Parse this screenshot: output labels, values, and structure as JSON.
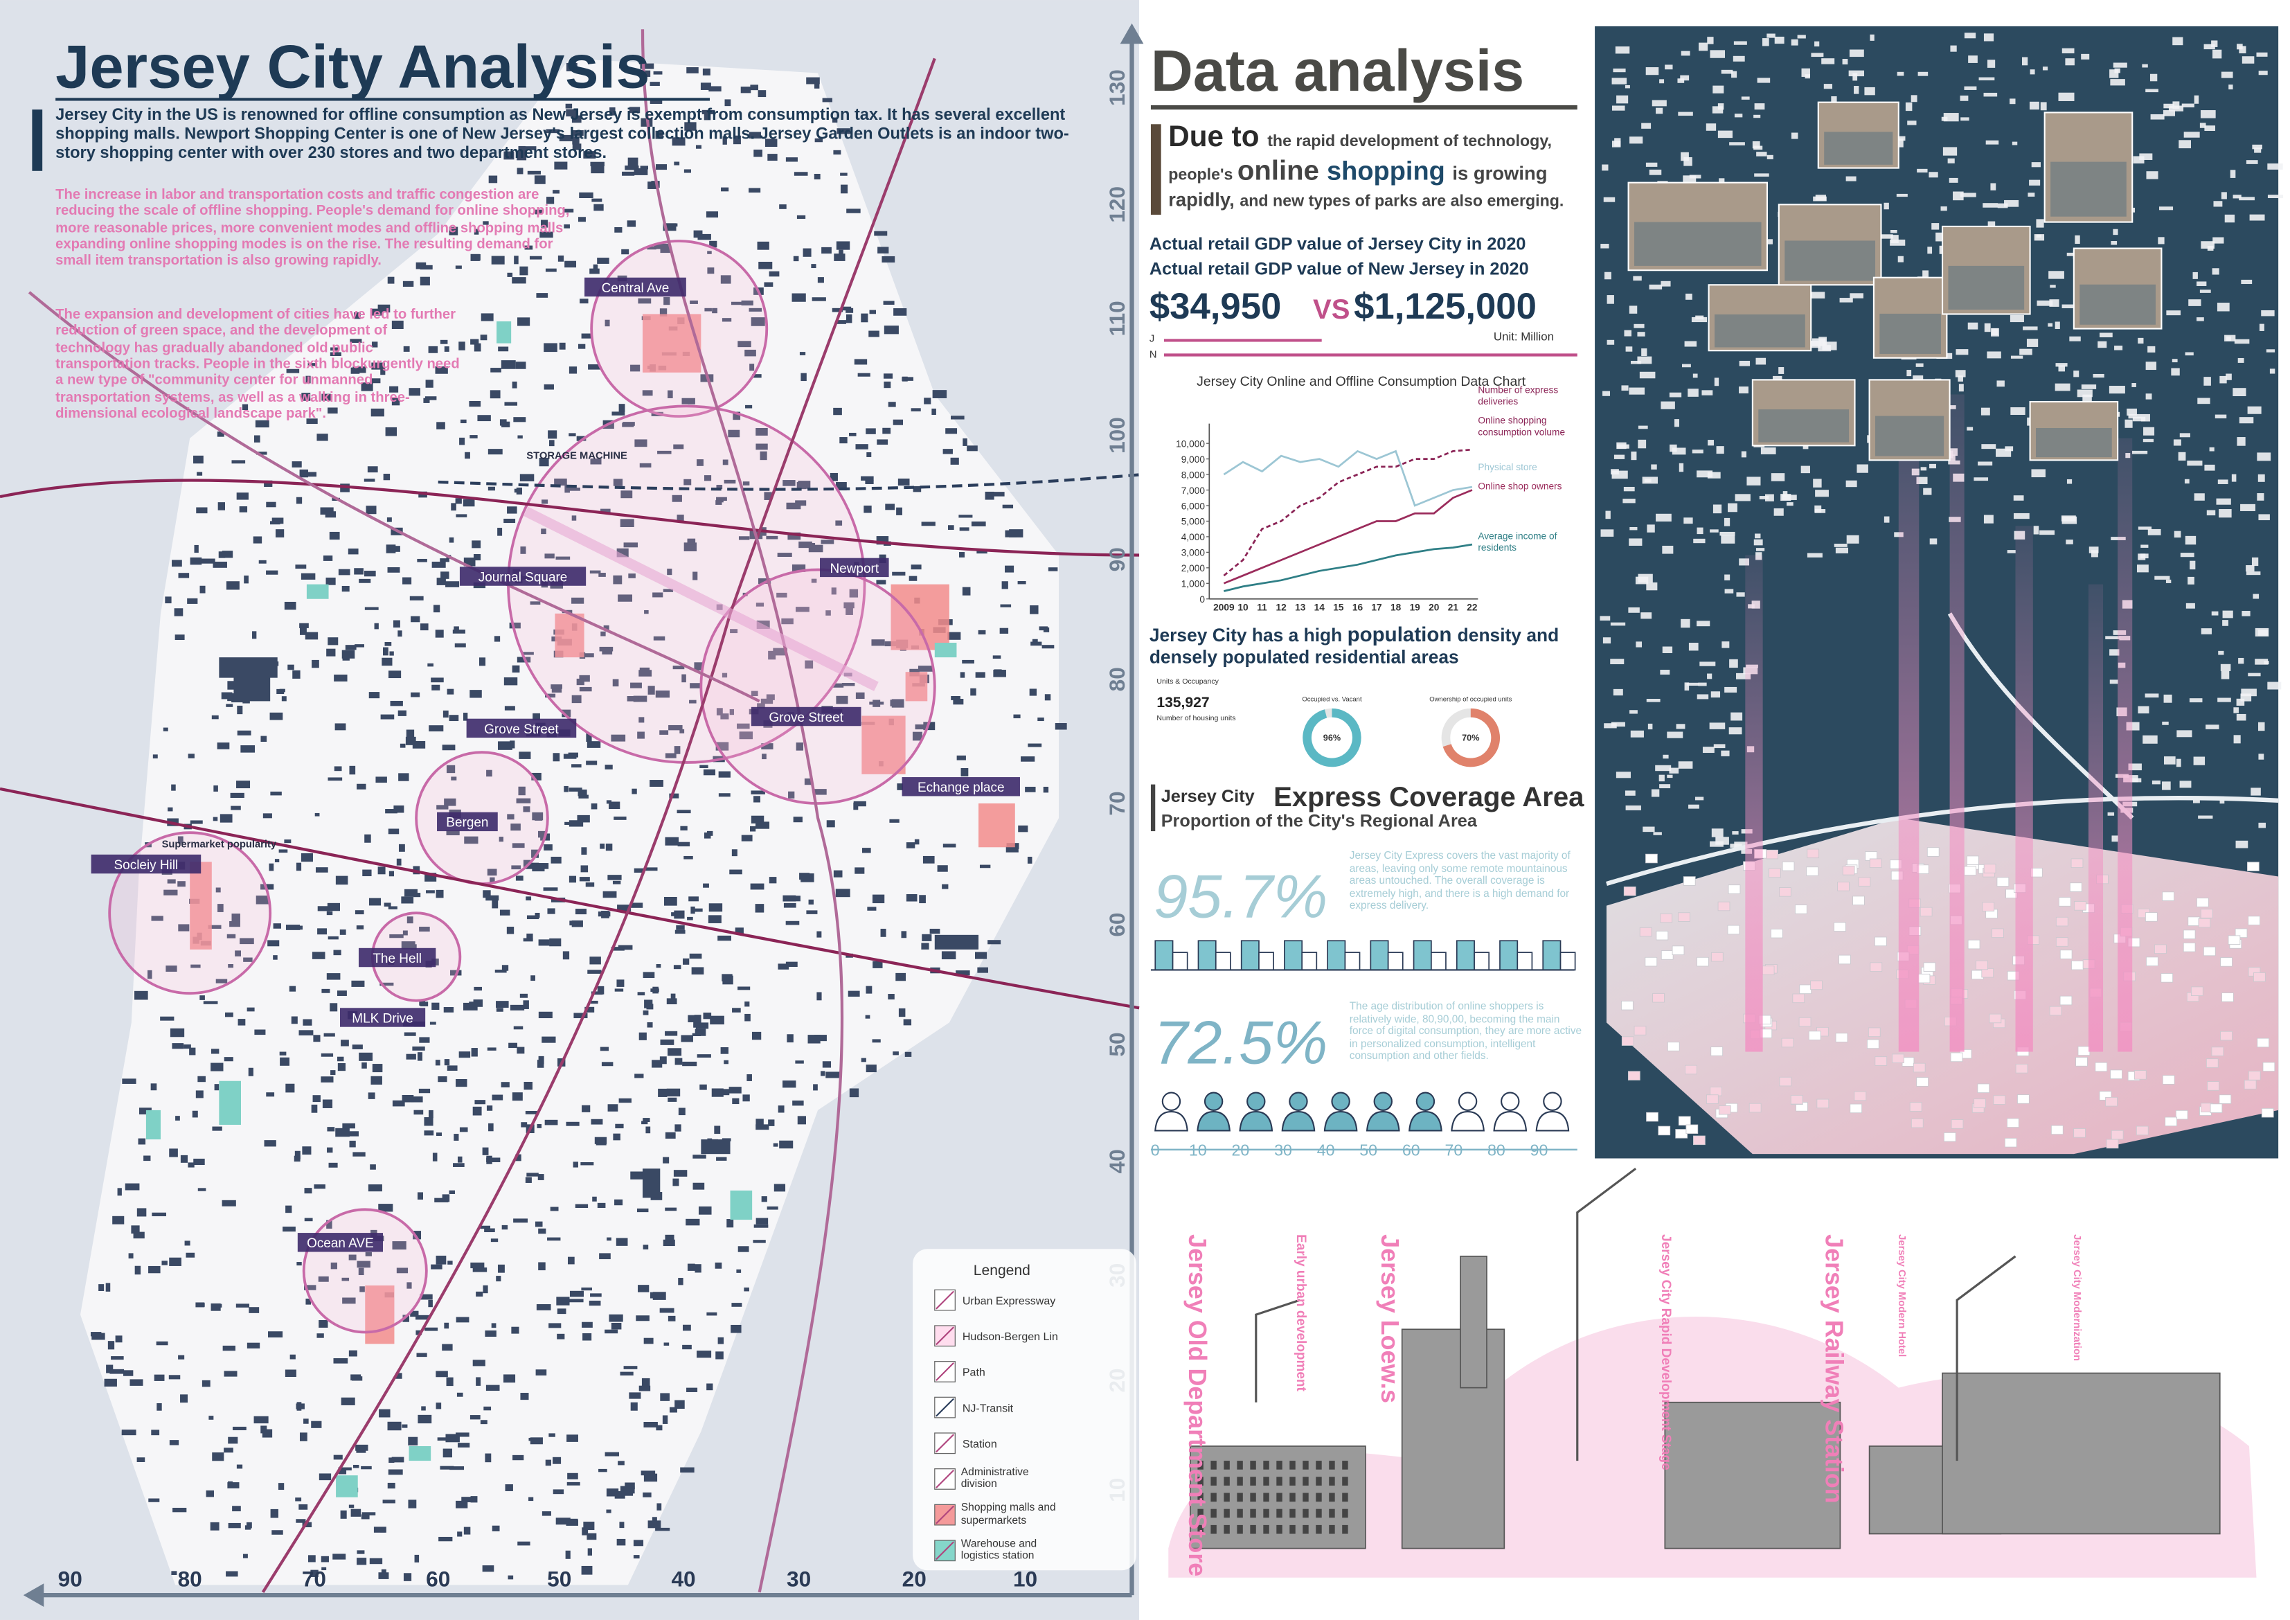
{
  "left": {
    "title": "Jersey City Analysis",
    "intro": "Jersey City in the US is renowned for offline consumption as New Jersey is exempt from consumption tax. It has several excellent shopping malls. Newport Shopping Center is one of New Jersey's largest collection malls. Jersey Garden Outlets is an indoor two-story shopping center with over 230 stores and two department stores.",
    "paragraphs": [
      "The increase in labor and transportation costs and traffic congestion are reducing the scale of offline shopping. People's demand for online shopping, more reasonable prices, more convenient modes and offline shopping malls expanding online shopping modes is on the rise. The resulting demand for small item transportation is also growing rapidly.",
      "The expansion and development of cities have led to further reduction of green space, and the development of technology has gradually abandoned old public transportation tracks. People in the sixth blockurgently need a new type of \"community center for unmanned transportation systems, as well as a walking in three-dimensional ecological landscape park\"."
    ],
    "places": [
      "Central Ave",
      "STORAGE MACHINE",
      "Journal Square",
      "Newport",
      "Grove Street",
      "Grove Street",
      "Echange place",
      "Bergen",
      "Socleiy Hill",
      "The Hell",
      "MLK Drive",
      "Ocean AVE",
      "Supermarket popularity"
    ],
    "x_ticks": [
      90,
      80,
      70,
      60,
      50,
      40,
      30,
      20,
      10
    ],
    "y_ticks": [
      130,
      120,
      110,
      100,
      90,
      80,
      70,
      60,
      50,
      40,
      30,
      20,
      10
    ],
    "legend": {
      "title": "Lengend",
      "items": [
        "Urban Expressway",
        "Hudson-Bergen Lin",
        "Path",
        "NJ-Transit",
        "Station",
        "Administrative division",
        "Shopping malls and supermarkets",
        "Warehouse and logistics station"
      ]
    }
  },
  "right": {
    "title": "Data analysis",
    "due": [
      "Due to",
      "the rapid development",
      "of technology, people's",
      "online",
      "shopping",
      "is growing rapidly,",
      "and new types of parks are also emerging."
    ],
    "gdp": {
      "line1": "Actual retail GDP value of Jersey City in 2020",
      "line2": "Actual retail GDP value of New Jersey in 2020",
      "jersey_city": "$34,950",
      "vs": "VS",
      "new_jersey": "$1,125,000",
      "j": "J",
      "n": "N",
      "unit": "Unit: Million"
    },
    "chart": {
      "type": "line",
      "title": "Jersey City Online and Offline Consumption Data Chart",
      "categories": [
        "2009",
        "10",
        "11",
        "12",
        "13",
        "14",
        "15",
        "16",
        "17",
        "18",
        "19",
        "20",
        "21",
        "22"
      ],
      "ylim": [
        0,
        10800
      ],
      "yticks": [
        0,
        {
          "value": 1000,
          "label": "1,000"
        },
        {
          "value": 2000,
          "label": "2,000"
        },
        {
          "value": 3000,
          "label": "3,000"
        },
        {
          "value": 4000,
          "label": "4,000"
        },
        {
          "value": 5000,
          "label": "5,000"
        },
        {
          "value": 6000,
          "label": "6,000"
        },
        {
          "value": 7000,
          "label": "7,000"
        },
        {
          "value": 8000,
          "label": "8,000"
        },
        {
          "value": 9000,
          "label": "9,000"
        },
        {
          "value": 10000,
          "label": "10,000"
        }
      ],
      "series": [
        {
          "name": "Number of express deliveries",
          "color": "#8b2456",
          "dashed": true,
          "values": [
            1500,
            2500,
            4500,
            5000,
            6000,
            6500,
            7500,
            8000,
            8500,
            8500,
            9000,
            9000,
            9500,
            9600
          ]
        },
        {
          "name": "Physical store",
          "color": "#9cc6d4",
          "dashed": false,
          "values": [
            8000,
            8800,
            8200,
            9200,
            8800,
            9000,
            8500,
            9500,
            9000,
            9500,
            6000,
            6500,
            7000,
            7200
          ]
        },
        {
          "name": "Online shop owners",
          "color": "#9b2c5c",
          "dashed": false,
          "values": [
            1000,
            1500,
            2000,
            2500,
            3000,
            3500,
            4000,
            4500,
            5000,
            5000,
            5500,
            5500,
            6500,
            7000
          ]
        },
        {
          "name": "Average income of residents",
          "color": "#2f7f86",
          "dashed": false,
          "values": [
            500,
            800,
            1000,
            1200,
            1500,
            1800,
            2000,
            2200,
            2500,
            2800,
            3000,
            3200,
            3300,
            3500
          ]
        }
      ],
      "note": "Online shopping consumption volume"
    },
    "population": {
      "heading": [
        "Jersey City has a high",
        "population",
        "density",
        "and densely populated residential areas"
      ],
      "units_title": "Units & Occupancy",
      "units": "135,927",
      "units_label": "Number of housing units",
      "donuts": [
        {
          "title": "Occupied vs. Vacant",
          "value": 96,
          "value_label": "96%",
          "color": "#5bb8c4"
        },
        {
          "title": "Ownership of occupied units",
          "value": 70,
          "value_label": "70%",
          "color": "#e0826b"
        }
      ]
    },
    "express": {
      "heading_small": "Jersey City",
      "heading_big": "Express Coverage Area",
      "subheading": "Proportion of the City's Regional Area",
      "coverage": "95.7%",
      "coverage_text": "Jersey City Express covers the vast majority of areas, leaving only some remote mountainous areas untouched. The overall coverage is extremely high, and there is a high demand for express delivery.",
      "age": "72.5%",
      "age_text": "The age distribution of online shoppers is relatively wide, 80,90,00, becoming the main force of digital consumption, they are more active in personalized consumption, intelligent consumption and other fields.",
      "age_ticks": [
        "0",
        "10",
        "20",
        "30",
        "40",
        "50",
        "60",
        "70",
        "80",
        "90"
      ]
    },
    "history": [
      "Jersey Old Department Store",
      "Early urban development",
      "Jersey Loew.s",
      "Jersey City Rapid Development Stage",
      "Jersey Railway Station",
      "Jersey City Modern Hotel",
      "Jersey City Modernization"
    ]
  }
}
